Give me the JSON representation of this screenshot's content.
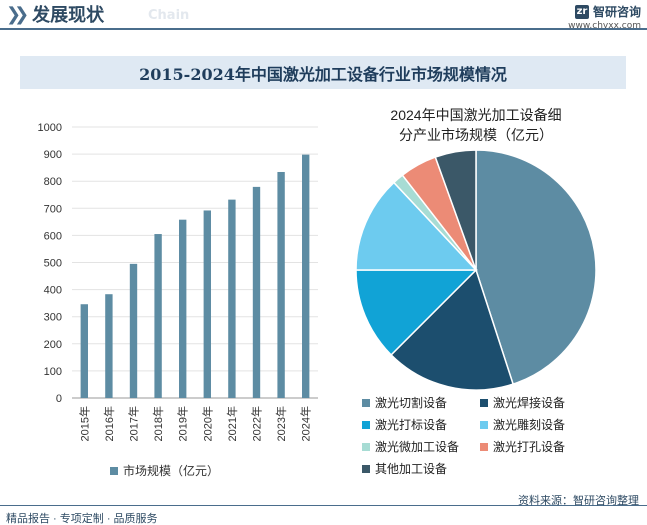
{
  "header": {
    "title": "发展现状",
    "subtitle_en": "Chain",
    "brand_name": "智研咨询",
    "brand_logo_text": "zr",
    "brand_url": "www.chyxx.com"
  },
  "banner": {
    "title": "2015-2024年中国激光加工设备行业市场规模情况"
  },
  "chart_data": [
    {
      "type": "bar",
      "title": "",
      "categories": [
        "2015年",
        "2016年",
        "2017年",
        "2018年",
        "2019年",
        "2020年",
        "2021年",
        "2022年",
        "2023年",
        "2024年"
      ],
      "series": [
        {
          "name": "市场规模（亿元）",
          "values": [
            346,
            383,
            495,
            605,
            658,
            692,
            732,
            779,
            834,
            898
          ]
        }
      ],
      "ylim": [
        0,
        1000
      ],
      "yticks": [
        0,
        100,
        200,
        300,
        400,
        500,
        600,
        700,
        800,
        900,
        1000
      ],
      "xlabel": "",
      "ylabel": "",
      "grid": true,
      "color": "#5d8ca3"
    },
    {
      "type": "pie",
      "title_lines": [
        "2024年中国激光加工设备细",
        "分产业市场规模（亿元）"
      ],
      "labels": [
        "激光切割设备",
        "激光焊接设备",
        "激光打标设备",
        "激光雕刻设备",
        "激光微加工设备",
        "激光打孔设备",
        "其他加工设备"
      ],
      "values": [
        45,
        17.5,
        12.5,
        13,
        1.5,
        5,
        5.5
      ],
      "colors": [
        "#5d8ca3",
        "#1c4e6e",
        "#11a3d6",
        "#6dcbef",
        "#a7dcd4",
        "#ec8b76",
        "#3b5868"
      ]
    }
  ],
  "footer": {
    "source": "资料来源：智研咨询整理",
    "tagline": "精品报告 · 专项定制 · 品质服务"
  }
}
